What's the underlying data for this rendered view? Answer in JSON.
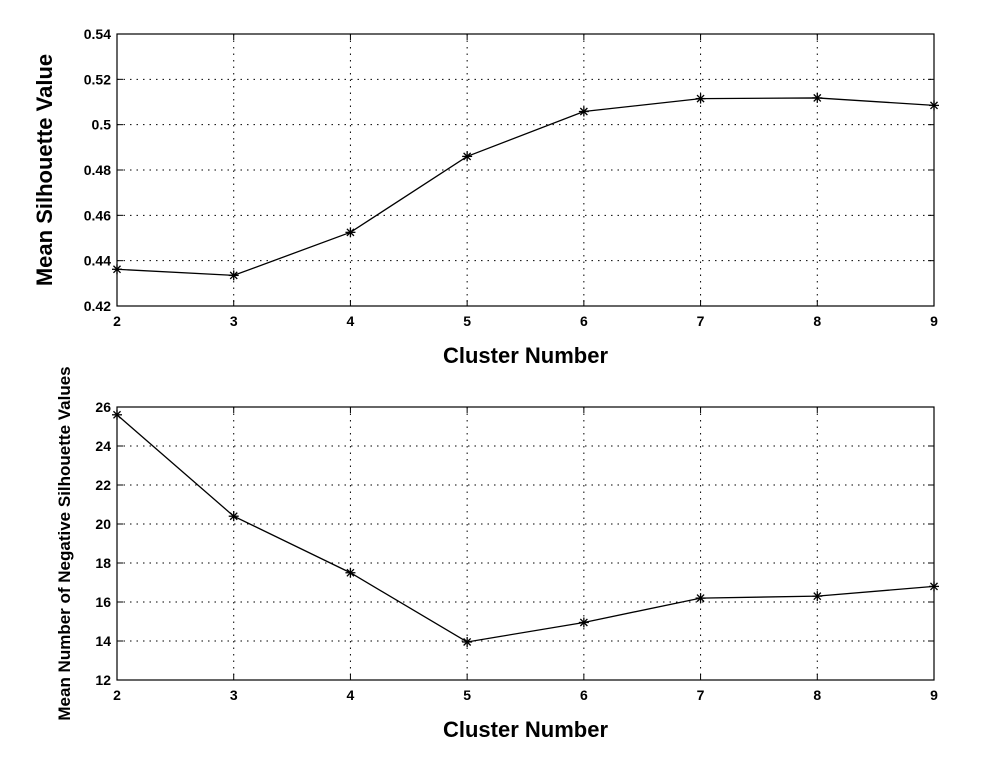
{
  "chart_data": [
    {
      "type": "line",
      "xlabel": "Cluster Number",
      "ylabel": "Mean Silhouette Value",
      "xlim": [
        2,
        9
      ],
      "ylim": [
        0.42,
        0.54
      ],
      "xticks": [
        "2",
        "3",
        "4",
        "5",
        "6",
        "7",
        "8",
        "9"
      ],
      "yticks": [
        "0.42",
        "0.44",
        "0.46",
        "0.48",
        "0.5",
        "0.52",
        "0.54"
      ],
      "grid": true,
      "marker": "asterisk",
      "color": "#000000",
      "x": [
        2,
        3,
        4,
        5,
        6,
        7,
        8,
        9
      ],
      "values": [
        0.4362,
        0.4335,
        0.4525,
        0.486,
        0.5058,
        0.5115,
        0.5118,
        0.5085
      ]
    },
    {
      "type": "line",
      "xlabel": "Cluster Number",
      "ylabel": "Mean Number of Negative Silhouette Values",
      "xlim": [
        2,
        9
      ],
      "ylim": [
        12,
        26
      ],
      "xticks": [
        "2",
        "3",
        "4",
        "5",
        "6",
        "7",
        "8",
        "9"
      ],
      "yticks": [
        "12",
        "14",
        "16",
        "18",
        "20",
        "22",
        "24",
        "26"
      ],
      "grid": true,
      "marker": "asterisk",
      "color": "#000000",
      "x": [
        2,
        3,
        4,
        5,
        6,
        7,
        8,
        9
      ],
      "values": [
        25.6,
        20.4,
        17.5,
        13.95,
        14.95,
        16.2,
        16.3,
        16.8
      ]
    }
  ]
}
